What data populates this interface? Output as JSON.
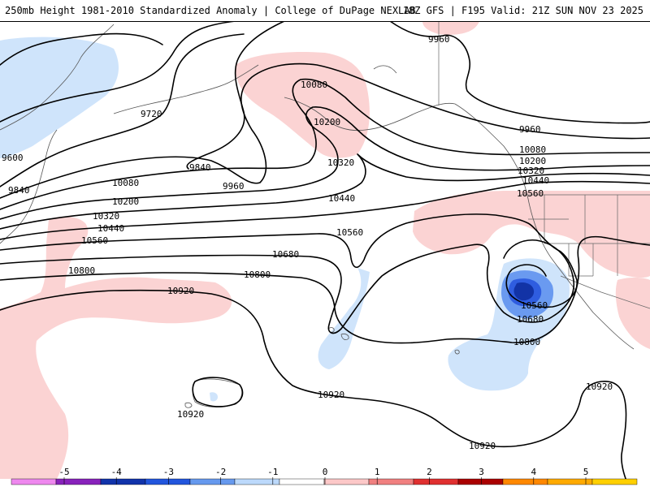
{
  "header": {
    "title": "250mb Height 1981-2010 Standardized Anomaly | College of DuPage NEXLAB",
    "run_info": "18Z GFS | F195 Valid: 21Z SUN NOV 23 2025"
  },
  "contour_labels": [
    "9960",
    "9720",
    "9600",
    "9840",
    "9840",
    "9960",
    "10080",
    "10200",
    "10320",
    "9960",
    "10080",
    "10200",
    "10320",
    "10440",
    "10560",
    "10080",
    "10200",
    "10320",
    "10440",
    "10560",
    "10440",
    "10680",
    "10560",
    "10800",
    "10800",
    "10920",
    "10560",
    "10680",
    "10800",
    "10920",
    "10920",
    "10920",
    "10920"
  ],
  "colorbar": {
    "ticks": [
      "-5",
      "-4",
      "-3",
      "-2",
      "-1",
      "0",
      "1",
      "2",
      "3",
      "4",
      "5"
    ],
    "colors": [
      "#ee88ee",
      "#8822bb",
      "#1133aa",
      "#2255dd",
      "#6699ee",
      "#bcd9fb",
      "#ffffff",
      "#fcc8c8",
      "#f08080",
      "#e03030",
      "#aa0000",
      "#ff8800",
      "#ffaa00",
      "#ffd000"
    ]
  }
}
